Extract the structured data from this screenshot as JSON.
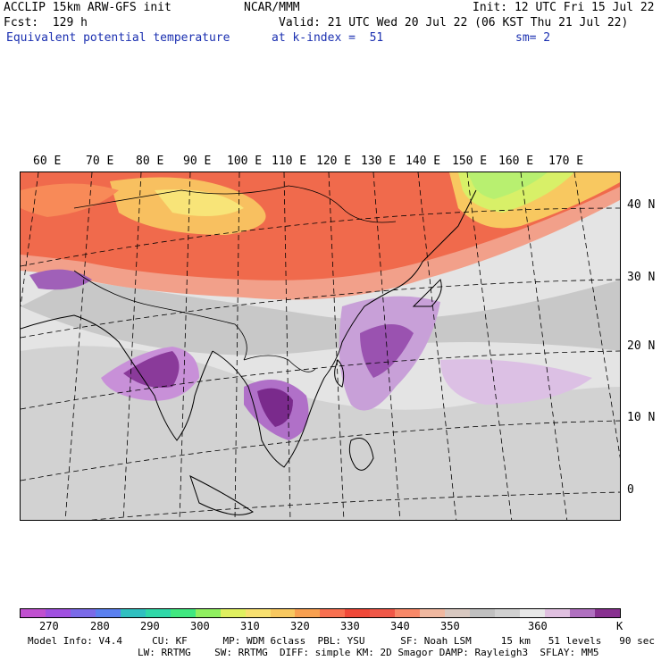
{
  "header": {
    "model": "ACCLIP 15km ARW-GFS init",
    "center": "NCAR/MMM",
    "init": "Init: 12 UTC Fri 15 Jul 22",
    "fcst": "Fcst:  129 h",
    "valid": "Valid: 21 UTC Wed 20 Jul 22 (06 KST Thu 21 Jul 22)",
    "field": "Equivalent potential temperature",
    "level": "at k-index =  51",
    "smooth": "sm= 2"
  },
  "map": {
    "lon_labels": [
      "60 E",
      "70 E",
      "80 E",
      "90 E",
      "100 E",
      "110 E",
      "120 E",
      "130 E",
      "140 E",
      "150 E",
      "160 E",
      "170 E"
    ],
    "lat_labels": [
      "40 N",
      "30 N",
      "20 N",
      "10 N",
      "0"
    ]
  },
  "colorbar": {
    "colors": [
      "#c050d0",
      "#a050e0",
      "#7a6ae8",
      "#5a80f0",
      "#30c0c0",
      "#30d8a8",
      "#40e880",
      "#90f060",
      "#e0f060",
      "#f8e070",
      "#f8c860",
      "#f8a050",
      "#f87050",
      "#f04838",
      "#f05848",
      "#f88868",
      "#f0b8a0",
      "#d8c8c0",
      "#c0c0c0",
      "#d0d0d0",
      "#e8e8e8",
      "#e0c0e0",
      "#b070c0",
      "#883090"
    ],
    "labels": [
      "270",
      "280",
      "290",
      "300",
      "310",
      "320",
      "330",
      "340",
      "350",
      "360"
    ],
    "unit": "K"
  },
  "footer": {
    "line1": "Model Info: V4.4     CU: KF      MP: WDM 6class  PBL: YSU      SF: Noah LSM     15 km   51 levels   90 sec",
    "line2": "LW: RRTMG    SW: RRTMG  DIFF: simple KM: 2D Smagor DAMP: Rayleigh3  SFLAY: MM5"
  }
}
